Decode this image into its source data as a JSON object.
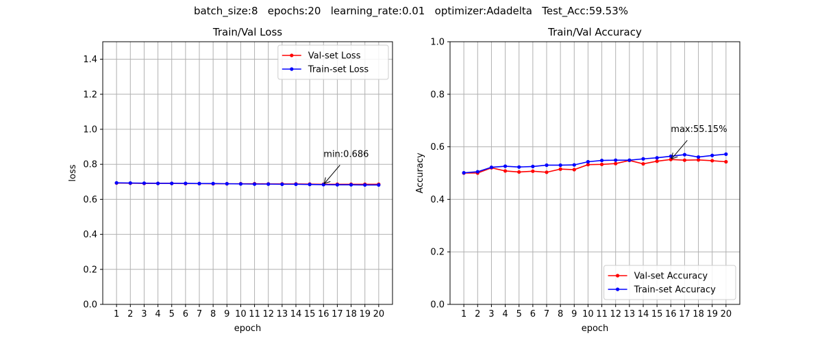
{
  "figure_title": "batch_size:8   epochs:20   learning_rate:0.01   optimizer:Adadelta   Test_Acc:59.53%",
  "chart_data": [
    {
      "type": "line",
      "title": "Train/Val Loss",
      "xlabel": "epoch",
      "ylabel": "loss",
      "x": [
        1,
        2,
        3,
        4,
        5,
        6,
        7,
        8,
        9,
        10,
        11,
        12,
        13,
        14,
        15,
        16,
        17,
        18,
        19,
        20
      ],
      "ylim": [
        0,
        1.5
      ],
      "yticks": [
        "0.0",
        "0.2",
        "0.4",
        "0.6",
        "0.8",
        "1.0",
        "1.2",
        "1.4"
      ],
      "ytick_values": [
        0,
        0.2,
        0.4,
        0.6,
        0.8,
        1.0,
        1.2,
        1.4
      ],
      "grid": true,
      "legend": "top-right",
      "annotation": {
        "text": "min:0.686",
        "x": 16,
        "y": 0.686
      },
      "series": [
        {
          "name": "Val-set Loss",
          "color": "#ff0000",
          "values": [
            0.693,
            0.692,
            0.691,
            0.691,
            0.691,
            0.69,
            0.69,
            0.689,
            0.689,
            0.689,
            0.689,
            0.688,
            0.688,
            0.688,
            0.687,
            0.686,
            0.686,
            0.686,
            0.686,
            0.686
          ]
        },
        {
          "name": "Train-set Loss",
          "color": "#0000ff",
          "values": [
            0.694,
            0.693,
            0.692,
            0.691,
            0.691,
            0.691,
            0.69,
            0.69,
            0.689,
            0.688,
            0.687,
            0.687,
            0.686,
            0.686,
            0.685,
            0.684,
            0.683,
            0.683,
            0.682,
            0.682
          ]
        }
      ]
    },
    {
      "type": "line",
      "title": "Train/Val Accuracy",
      "xlabel": "epoch",
      "ylabel": "Accuracy",
      "x": [
        1,
        2,
        3,
        4,
        5,
        6,
        7,
        8,
        9,
        10,
        11,
        12,
        13,
        14,
        15,
        16,
        17,
        18,
        19,
        20
      ],
      "ylim": [
        0,
        1.0
      ],
      "yticks": [
        "0.0",
        "0.2",
        "0.4",
        "0.6",
        "0.8",
        "1.0"
      ],
      "ytick_values": [
        0,
        0.2,
        0.4,
        0.6,
        0.8,
        1.0
      ],
      "grid": true,
      "legend": "bottom-right",
      "annotation": {
        "text": "max:55.15%",
        "x": 16,
        "y": 0.5515
      },
      "series": [
        {
          "name": "Val-set Accuracy",
          "color": "#ff0000",
          "values": [
            0.5,
            0.5,
            0.52,
            0.508,
            0.504,
            0.507,
            0.503,
            0.515,
            0.513,
            0.532,
            0.533,
            0.536,
            0.548,
            0.535,
            0.545,
            0.5515,
            0.549,
            0.55,
            0.547,
            0.543
          ]
        },
        {
          "name": "Train-set Accuracy",
          "color": "#0000ff",
          "values": [
            0.501,
            0.505,
            0.522,
            0.526,
            0.523,
            0.525,
            0.53,
            0.53,
            0.531,
            0.543,
            0.548,
            0.549,
            0.549,
            0.554,
            0.558,
            0.564,
            0.57,
            0.561,
            0.567,
            0.572
          ]
        }
      ]
    }
  ]
}
